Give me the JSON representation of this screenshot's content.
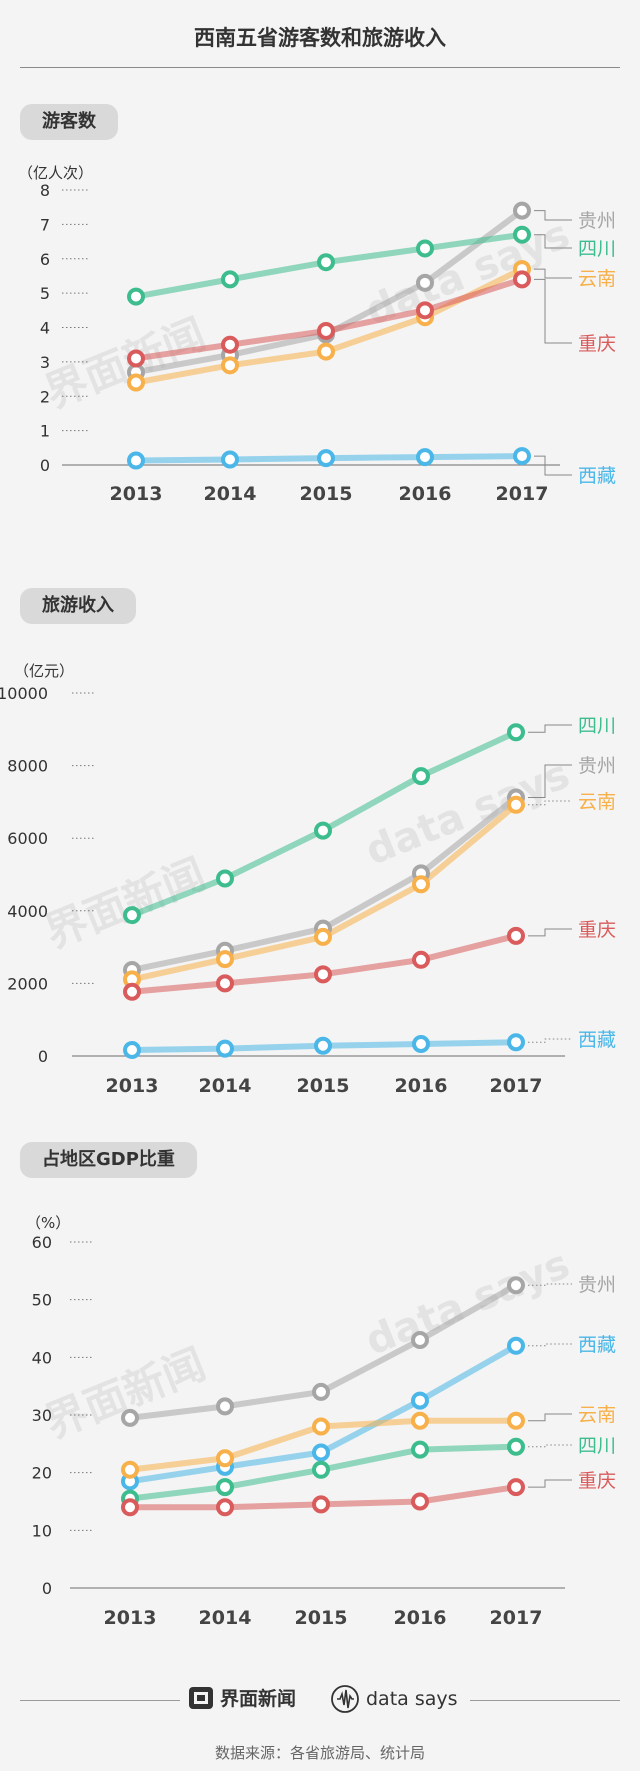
{
  "title": "西南五省游客数和旅游收入",
  "footer": {
    "brand": "界面新闻",
    "says": "data says",
    "source": "数据来源：各省旅游局、统计局"
  },
  "colors": {
    "贵州": "#a6a6a6",
    "四川": "#3dbd8e",
    "云南": "#f7b04a",
    "重庆": "#d95b5b",
    "西藏": "#4ab7e8"
  },
  "sections": [
    {
      "label": "游客数",
      "unit": "（亿人次）"
    },
    {
      "label": "旅游收入",
      "unit": "（亿元）"
    },
    {
      "label": "占地区GDP比重",
      "unit": "（%）"
    }
  ],
  "chart_data": [
    {
      "type": "line",
      "title": "游客数",
      "ylabel": "（亿人次）",
      "x": [
        "2013",
        "2014",
        "2015",
        "2016",
        "2017"
      ],
      "yticks": [
        "0",
        "1",
        "2",
        "3",
        "4",
        "5",
        "6",
        "7",
        "8"
      ],
      "ylim": [
        0,
        8
      ],
      "series": [
        {
          "name": "贵州",
          "values": [
            2.7,
            3.2,
            3.8,
            5.3,
            7.4
          ]
        },
        {
          "name": "四川",
          "values": [
            4.9,
            5.4,
            5.9,
            6.3,
            6.7
          ]
        },
        {
          "name": "云南",
          "values": [
            2.4,
            2.9,
            3.3,
            4.3,
            5.7
          ]
        },
        {
          "name": "重庆",
          "values": [
            3.1,
            3.5,
            3.9,
            4.5,
            5.4
          ]
        },
        {
          "name": "西藏",
          "values": [
            0.13,
            0.16,
            0.2,
            0.23,
            0.26
          ]
        }
      ]
    },
    {
      "type": "line",
      "title": "旅游收入",
      "ylabel": "（亿元）",
      "x": [
        "2013",
        "2014",
        "2015",
        "2016",
        "2017"
      ],
      "yticks": [
        "0",
        "2000",
        "4000",
        "6000",
        "8000",
        "10000"
      ],
      "ylim": [
        0,
        10000
      ],
      "series": [
        {
          "name": "四川",
          "values": [
            3880,
            4890,
            6210,
            7710,
            8920
          ]
        },
        {
          "name": "贵州",
          "values": [
            2370,
            2900,
            3510,
            5030,
            7120
          ]
        },
        {
          "name": "云南",
          "values": [
            2110,
            2670,
            3280,
            4730,
            6920
          ]
        },
        {
          "name": "重庆",
          "values": [
            1770,
            2000,
            2250,
            2650,
            3310
          ]
        },
        {
          "name": "西藏",
          "values": [
            165,
            204,
            282,
            331,
            380
          ]
        }
      ]
    },
    {
      "type": "line",
      "title": "占地区GDP比重",
      "ylabel": "（%）",
      "x": [
        "2013",
        "2014",
        "2015",
        "2016",
        "2017"
      ],
      "yticks": [
        "0",
        "10",
        "20",
        "30",
        "40",
        "50",
        "60"
      ],
      "ylim": [
        0,
        60
      ],
      "series": [
        {
          "name": "贵州",
          "values": [
            29.5,
            31.5,
            34.0,
            43.0,
            52.5
          ]
        },
        {
          "name": "西藏",
          "values": [
            18.5,
            21.0,
            23.5,
            32.5,
            42.0
          ]
        },
        {
          "name": "云南",
          "values": [
            20.5,
            22.5,
            28.0,
            29.0,
            29.0
          ]
        },
        {
          "name": "四川",
          "values": [
            15.5,
            17.5,
            20.5,
            24.0,
            24.5
          ]
        },
        {
          "name": "重庆",
          "values": [
            14.0,
            14.0,
            14.5,
            15.0,
            17.5
          ]
        }
      ]
    }
  ]
}
